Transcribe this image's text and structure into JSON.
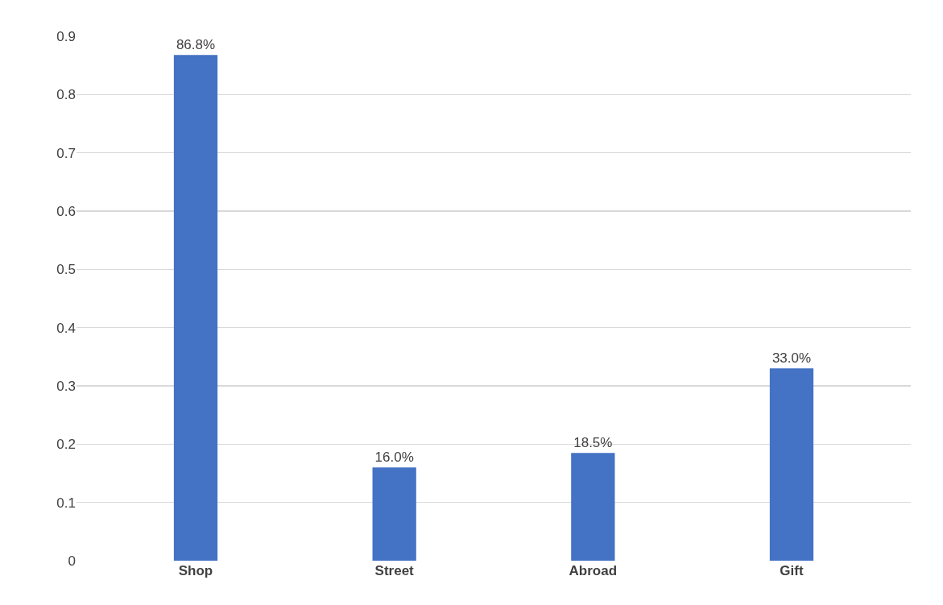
{
  "chart_data": {
    "type": "bar",
    "categories": [
      "Shop",
      "Street",
      "Abroad",
      "Gift"
    ],
    "values": [
      0.868,
      0.16,
      0.185,
      0.33
    ],
    "value_labels": [
      "86.8%",
      "16.0%",
      "18.5%",
      "33.0%"
    ],
    "color": "#4472c4",
    "ylim": [
      0,
      0.9
    ],
    "yticks": [
      0,
      0.1,
      0.2,
      0.3,
      0.4,
      0.5,
      0.6,
      0.7,
      0.8,
      0.9
    ],
    "grid": "y",
    "legend": false
  }
}
